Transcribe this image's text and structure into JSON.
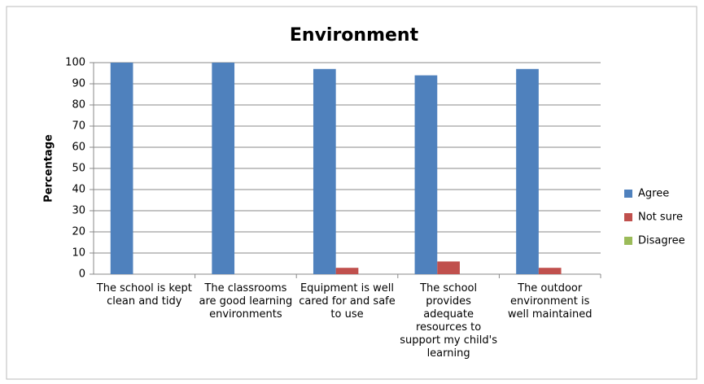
{
  "chart_data": {
    "type": "bar",
    "title": "Environment",
    "y_label": "Percentage",
    "categories": [
      "The school is kept clean and tidy",
      "The classrooms are good learning environments",
      "Equipment is well cared for and safe to use",
      "The school provides adequate resources to support my child's learning",
      "The outdoor environment is well maintained"
    ],
    "series": [
      {
        "name": "Agree",
        "color": "#4f81bd",
        "values": [
          100,
          100,
          97,
          94,
          97
        ]
      },
      {
        "name": "Not sure",
        "color": "#c0504d",
        "values": [
          0,
          0,
          3,
          6,
          3
        ]
      },
      {
        "name": "Disagree",
        "color": "#9bbb59",
        "values": [
          0,
          0,
          0,
          0,
          0
        ]
      }
    ],
    "ylim": [
      0,
      100
    ],
    "yticks": [
      0,
      10,
      20,
      30,
      40,
      50,
      60,
      70,
      80,
      90,
      100
    ],
    "grid": true,
    "legend": "right"
  }
}
